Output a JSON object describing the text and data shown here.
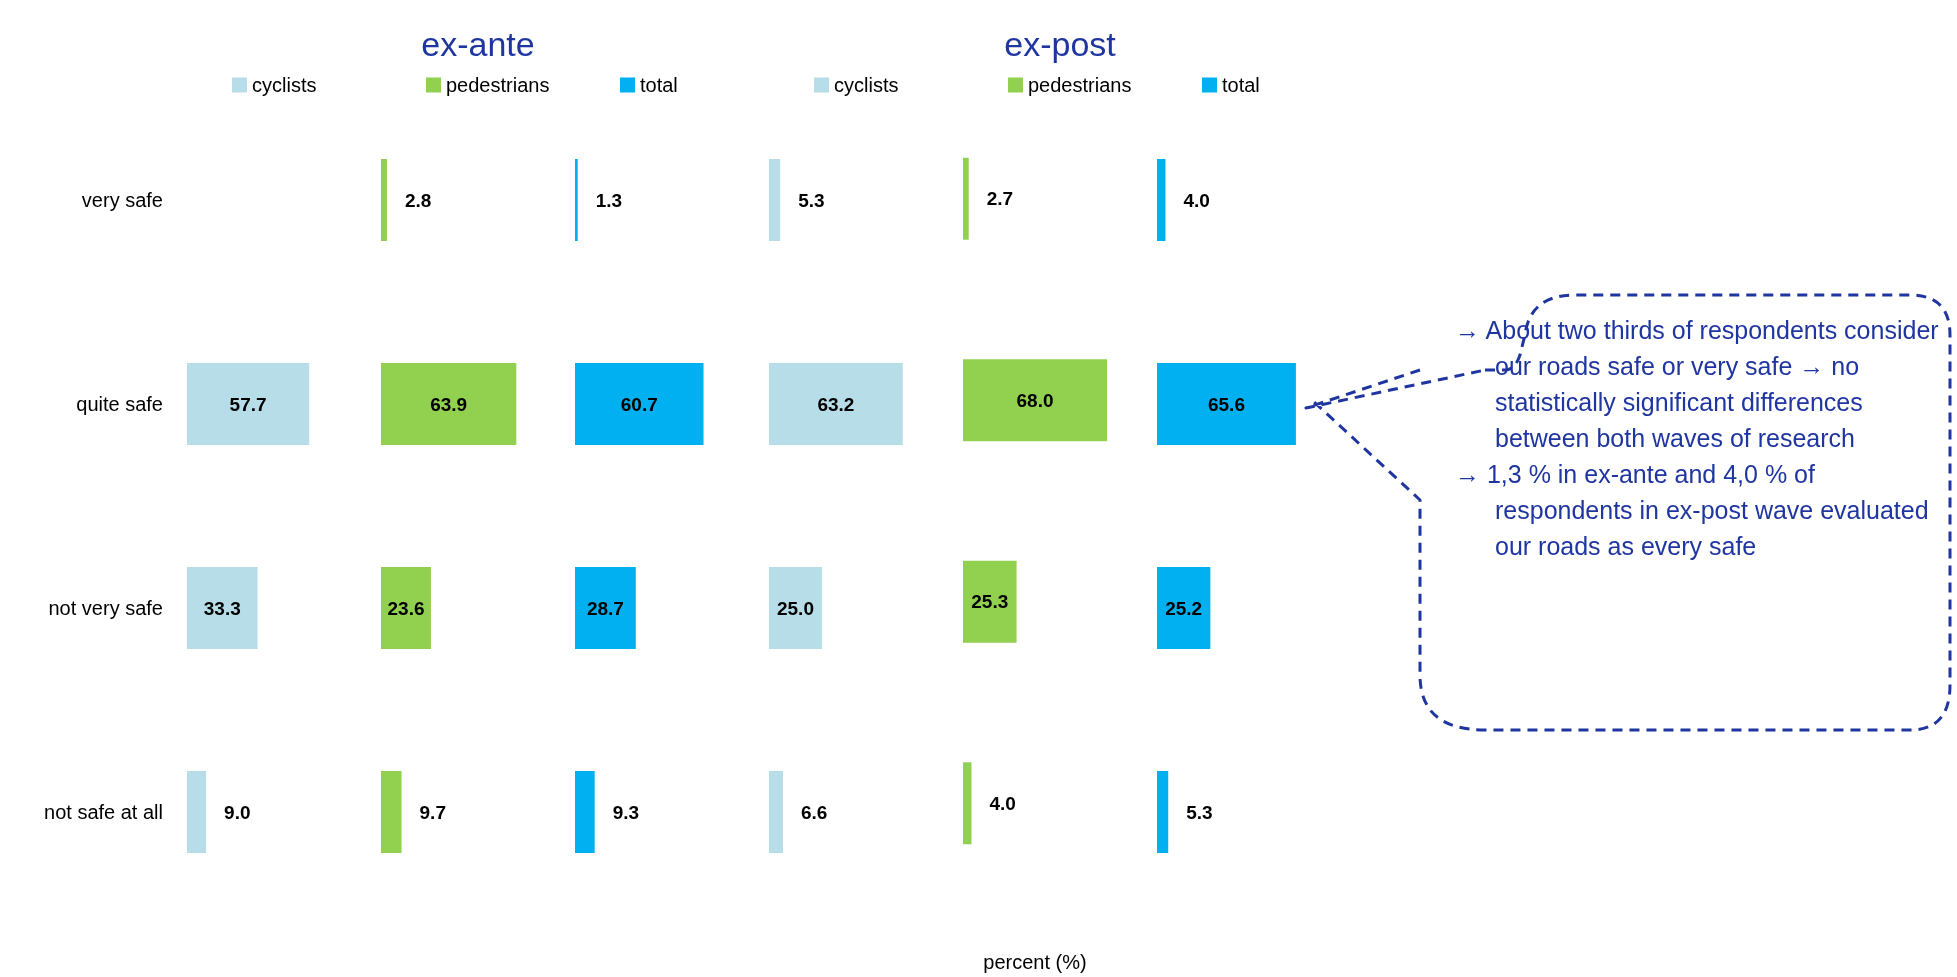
{
  "chart_data": [
    {
      "type": "bar",
      "orientation": "horizontal",
      "categories": [
        "very safe",
        "quite safe",
        "not very safe",
        "not safe at all"
      ],
      "series": [
        {
          "name": "cyclists",
          "color": "#b7dde8",
          "values": [
            null,
            57.7,
            33.3,
            9.0
          ],
          "value_labels": [
            null,
            "57.7",
            "33.3",
            "9.0"
          ]
        }
      ],
      "tick_labels": "y",
      "legend": "top"
    },
    {
      "type": "bar",
      "orientation": "horizontal",
      "title": "ex-ante",
      "categories": [
        null,
        null,
        null,
        null
      ],
      "series": [
        {
          "name": "pedestrians",
          "color": "#92d050",
          "values": [
            2.8,
            63.9,
            23.6,
            9.7
          ],
          "value_labels": [
            "2.8",
            "63.9",
            "23.6",
            "9.7"
          ]
        }
      ],
      "tick_labels": false,
      "legend": "top"
    },
    {
      "type": "bar",
      "orientation": "horizontal",
      "categories": [
        null,
        null,
        null,
        null
      ],
      "series": [
        {
          "name": "total",
          "color": "#00b0f0",
          "values": [
            1.3,
            60.7,
            28.7,
            9.3
          ],
          "value_labels": [
            "1.3",
            "60.7",
            "28.7",
            "9.3"
          ]
        }
      ],
      "tick_labels": false,
      "legend": "top"
    },
    {
      "type": "bar",
      "orientation": "horizontal",
      "categories": [
        null,
        null,
        null,
        null
      ],
      "series": [
        {
          "name": "cyclists",
          "color": "#b7dde8",
          "values": [
            5.3,
            63.2,
            25.0,
            6.6
          ],
          "value_labels": [
            "5.3",
            "63.2",
            "25.0",
            "6.6"
          ]
        }
      ],
      "tick_labels": false,
      "legend": "top"
    },
    {
      "type": "bar",
      "orientation": "horizontal",
      "title": "ex-post",
      "xlabel": "percent (%)",
      "categories": [
        null,
        null,
        null,
        null
      ],
      "series": [
        {
          "name": "pedestrians",
          "color": "#92d050",
          "values": [
            2.7,
            68.0,
            25.3,
            4.0
          ],
          "value_labels": [
            "2.7",
            "68.0",
            "25.3",
            "4.0"
          ]
        }
      ],
      "tick_labels": false,
      "legend": "top"
    },
    {
      "type": "bar",
      "orientation": "horizontal",
      "categories": [
        null,
        null,
        null,
        null
      ],
      "series": [
        {
          "name": "total",
          "color": "#00b0f0",
          "values": [
            4.0,
            65.6,
            25.2,
            5.3
          ],
          "value_labels": [
            "4.0",
            "65.6",
            "25.2",
            "5.3"
          ]
        }
      ],
      "tick_labels": false,
      "legend": "top",
      "annotations": [
        "→ About two thirds of respondents consider our roads safe or very safe → no statistically significant differences between both waves of research",
        "→ 1,3 % in ex-ante and 4,0 % of respondents in ex-post wave evaluated our roads as every safe"
      ]
    }
  ]
}
